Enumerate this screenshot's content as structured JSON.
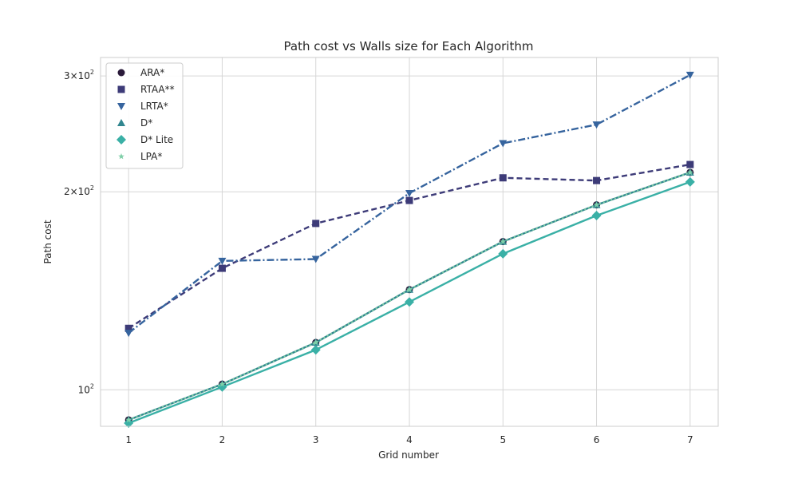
{
  "chart_data": {
    "type": "line",
    "title": "Path cost vs Walls size for Each Algorithm",
    "xlabel": "Grid number",
    "ylabel": "Path cost",
    "x": [
      1,
      2,
      3,
      4,
      5,
      6,
      7
    ],
    "x_ticks": [
      "1",
      "2",
      "3",
      "4",
      "5",
      "6",
      "7"
    ],
    "xlim": [
      0.7,
      7.3
    ],
    "y_scale": "log",
    "ylim": [
      88,
      320
    ],
    "y_ticks": [
      {
        "value": 100,
        "base": "10",
        "exp": "2"
      },
      {
        "value": 200,
        "base": "2×10",
        "exp": "2"
      },
      {
        "value": 300,
        "base": "3×10",
        "exp": "2"
      }
    ],
    "grid": true,
    "legend_position": "top-left",
    "series": [
      {
        "name": "ARA*",
        "values": [
          90,
          102,
          118,
          142,
          168,
          191,
          214
        ],
        "color": "#2a1a3a",
        "marker": "circle",
        "line": "dotted"
      },
      {
        "name": "RTAA**",
        "values": [
          124,
          153,
          179,
          194,
          210,
          208,
          220
        ],
        "color": "#3d3b78",
        "marker": "square",
        "line": "dashed"
      },
      {
        "name": "LRTA*",
        "values": [
          122,
          157,
          158,
          199,
          237,
          253,
          301
        ],
        "color": "#36649e",
        "marker": "triangle-down",
        "line": "dashdot"
      },
      {
        "name": "D*",
        "values": [
          90,
          102,
          118,
          142,
          168,
          191,
          214
        ],
        "color": "#31868f",
        "marker": "triangle-up",
        "line": "solid"
      },
      {
        "name": "D* Lite",
        "values": [
          89,
          101,
          115,
          136,
          161,
          184,
          207
        ],
        "color": "#3ab0a6",
        "marker": "diamond",
        "line": "solid"
      },
      {
        "name": "LPA*",
        "values": [
          90,
          102,
          118,
          142,
          168,
          191,
          214
        ],
        "color": "#7fcfa8",
        "marker": "star",
        "line": "dotted"
      }
    ]
  }
}
